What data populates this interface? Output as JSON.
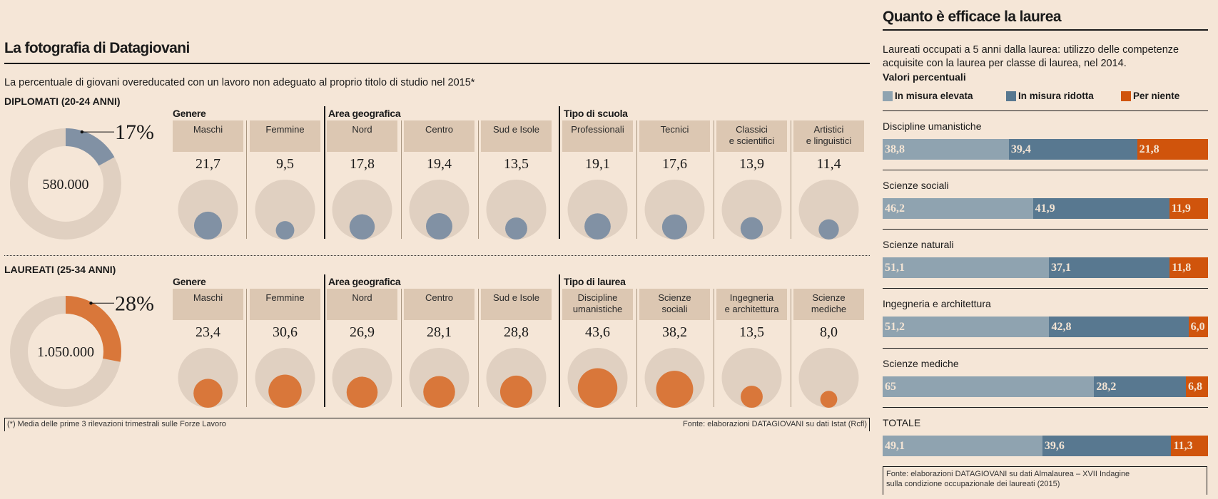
{
  "left": {
    "title": "La fotografia di Datagiovani",
    "subtitle": "La percentuale di giovani overeducated con un lavoro non adeguato al proprio titolo di studio nel 2015*",
    "footnote": "(*) Media delle prime 3 rilevazioni trimestrali sulle Forze Lavoro",
    "source": "Fonte: elaborazioni DATAGIOVANI su dati Istat (Rcfl)",
    "colors": {
      "diplomati": "#8191a4",
      "laureati": "#d9773a",
      "track": "#e0d0c1",
      "tile": "#dcc7b2"
    }
  },
  "chart_data": [
    {
      "type": "pie",
      "title": "DIPLOMATI (20-24 ANNI)",
      "percent_label": "17%",
      "value": 17,
      "center_label": "580.000"
    },
    {
      "type": "bubble",
      "title": "DIPLOMATI (20-24 ANNI)",
      "groups": [
        {
          "name": "Genere",
          "categories": [
            "Maschi",
            "Femmine"
          ],
          "values": [
            "21,7",
            "9,5"
          ],
          "numeric": [
            21.7,
            9.5
          ]
        },
        {
          "name": "Area geografica",
          "categories": [
            "Nord",
            "Centro",
            "Sud e Isole"
          ],
          "values": [
            "17,8",
            "19,4",
            "13,5"
          ],
          "numeric": [
            17.8,
            19.4,
            13.5
          ]
        },
        {
          "name": "Tipo  di scuola",
          "categories": [
            "Professionali",
            "Tecnici",
            "Classici\ne scientifici",
            "Artistici\ne linguistici"
          ],
          "values": [
            "19,1",
            "17,6",
            "13,9",
            "11,4"
          ],
          "numeric": [
            19.1,
            17.6,
            13.9,
            11.4
          ]
        }
      ],
      "max_scale": 100
    },
    {
      "type": "pie",
      "title": "LAUREATI (25-34 ANNI)",
      "percent_label": "28%",
      "value": 28,
      "center_label": "1.050.000"
    },
    {
      "type": "bubble",
      "title": "LAUREATI (25-34 ANNI)",
      "groups": [
        {
          "name": "Genere",
          "categories": [
            "Maschi",
            "Femmine"
          ],
          "values": [
            "23,4",
            "30,6"
          ],
          "numeric": [
            23.4,
            30.6
          ]
        },
        {
          "name": "Area geografica",
          "categories": [
            "Nord",
            "Centro",
            "Sud e Isole"
          ],
          "values": [
            "26,9",
            "28,1",
            "28,8"
          ],
          "numeric": [
            26.9,
            28.1,
            28.8
          ]
        },
        {
          "name": "Tipo  di laurea",
          "categories": [
            "Discipline\numanistiche",
            "Scienze\nsociali",
            "Ingegneria\ne architettura",
            "Scienze\nmediche"
          ],
          "values": [
            "43,6",
            "38,2",
            "13,5",
            "8,0"
          ],
          "numeric": [
            43.6,
            38.2,
            13.5,
            8.0
          ]
        }
      ],
      "max_scale": 100
    },
    {
      "type": "bar",
      "stacked": true,
      "orientation": "horizontal",
      "title": "Quanto è efficace la laurea",
      "subtitle": "Laureati occupati a 5 anni dalla laurea: utilizzo delle competenze acquisite con la laurea per classe di laurea, nel 2014.",
      "unit_label": "Valori percentuali",
      "categories": [
        "Discipline umanistiche",
        "Scienze sociali",
        "Scienze naturali",
        "Ingegneria e architettura",
        "Scienze mediche",
        "TOTALE"
      ],
      "series": [
        {
          "name": "In misura elevata",
          "color": "#8fa3b0",
          "values": [
            38.8,
            46.2,
            51.1,
            51.2,
            65,
            49.1
          ],
          "labels": [
            "38,8",
            "46,2",
            "51,1",
            "51,2",
            "65",
            "49,1"
          ]
        },
        {
          "name": "In misura ridotta",
          "color": "#587890",
          "values": [
            39.4,
            41.9,
            37.1,
            42.8,
            28.2,
            39.6
          ],
          "labels": [
            "39,4",
            "41,9",
            "37,1",
            "42,8",
            "28,2",
            "39,6"
          ]
        },
        {
          "name": "Per niente",
          "color": "#d0540c",
          "values": [
            21.8,
            11.9,
            11.8,
            6.0,
            6.8,
            11.3
          ],
          "labels": [
            "21,8",
            "11,9",
            "11,8",
            "6,0",
            "6,8",
            "11,3"
          ]
        }
      ],
      "xlim": [
        0,
        100
      ],
      "legend": "top",
      "source_line1": "Fonte: elaborazioni DATAGIOVANI su dati Almalaurea – XVII Indagine",
      "source_line2": "sulla condizione occupazionale dei laureati (2015)"
    }
  ]
}
